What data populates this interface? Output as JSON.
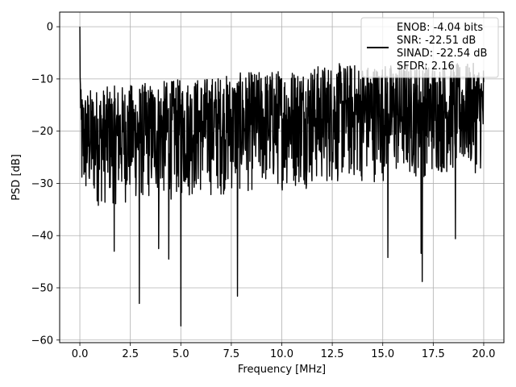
{
  "chart_data": {
    "type": "line",
    "xlabel": "Frequency [MHz]",
    "ylabel": "PSD [dB]",
    "xlim": [
      -1.0,
      21.0
    ],
    "ylim": [
      -60.5,
      2.8
    ],
    "x_ticks": [
      0.0,
      2.5,
      5.0,
      7.5,
      10.0,
      12.5,
      15.0,
      17.5,
      20.0
    ],
    "x_tick_labels": [
      "0.0",
      "2.5",
      "5.0",
      "7.5",
      "10.0",
      "12.5",
      "15.0",
      "17.5",
      "20.0"
    ],
    "y_ticks": [
      0,
      -10,
      -20,
      -30,
      -40,
      -50,
      -60
    ],
    "y_tick_labels": [
      "0",
      "−10",
      "−20",
      "−30",
      "−40",
      "−50",
      "−60"
    ],
    "grid": true,
    "legend_position": "top-right",
    "series": [
      {
        "label_lines": [
          "ENOB: -4.04 bits",
          "SNR: -22.51 dB",
          "SINAD: -22.54 dB",
          "SFDR: 2.16"
        ],
        "color": "#000000",
        "x_range": [
          0.0,
          20.0
        ],
        "start_value": 0.0,
        "band_upper": [
          -12,
          -7
        ],
        "band_lower": [
          -35,
          -28
        ],
        "deep_dips": [
          {
            "x": 1.7,
            "y": -43.0
          },
          {
            "x": 2.95,
            "y": -53.0
          },
          {
            "x": 3.9,
            "y": -42.5
          },
          {
            "x": 4.4,
            "y": -44.5
          },
          {
            "x": 5.0,
            "y": -57.3
          },
          {
            "x": 7.8,
            "y": -51.6
          },
          {
            "x": 15.25,
            "y": -44.2
          },
          {
            "x": 16.9,
            "y": -43.4
          },
          {
            "x": 16.95,
            "y": -48.8
          },
          {
            "x": 18.6,
            "y": -40.6
          }
        ]
      }
    ]
  }
}
